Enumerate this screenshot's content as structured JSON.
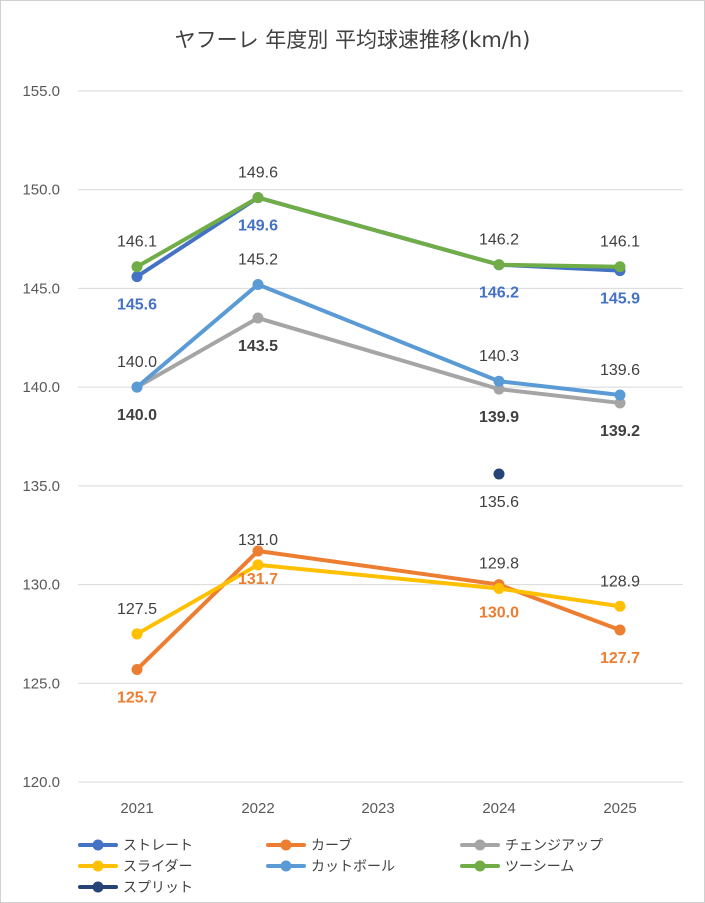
{
  "chart_data": {
    "type": "line",
    "title": "ヤフーレ 年度別 平均球速推移(km/h)",
    "categories": [
      "2021",
      "2022",
      "2023",
      "2024",
      "2025"
    ],
    "ylim": [
      120,
      155
    ],
    "yticks": [
      "120.0",
      "125.0",
      "130.0",
      "135.0",
      "140.0",
      "145.0",
      "150.0",
      "155.0"
    ],
    "grid": true,
    "legend_position": "bottom",
    "series": [
      {
        "name": "ストレート",
        "color": "#4472C4",
        "values": [
          145.6,
          149.6,
          null,
          146.2,
          145.9
        ],
        "labels": [
          "145.6",
          "149.6",
          null,
          "146.2",
          "145.9"
        ],
        "label_pos": "below",
        "label_color": "#4472C4",
        "label_bold": true
      },
      {
        "name": "カーブ",
        "color": "#ED7D31",
        "values": [
          125.7,
          131.7,
          null,
          130.0,
          127.7
        ],
        "labels": [
          "125.7",
          "131.7",
          null,
          "130.0",
          "127.7"
        ],
        "label_pos": "below",
        "label_color": "#ED7D31",
        "label_bold": true
      },
      {
        "name": "チェンジアップ",
        "color": "#A5A5A5",
        "values": [
          140.0,
          143.5,
          null,
          139.9,
          139.2
        ],
        "labels": [
          "140.0",
          "143.5",
          null,
          "139.9",
          "139.2"
        ],
        "label_pos": "below",
        "label_color": "#404040",
        "label_bold": true
      },
      {
        "name": "スライダー",
        "color": "#FFC000",
        "values": [
          127.5,
          131.0,
          null,
          129.8,
          128.9
        ],
        "labels": [
          "127.5",
          "131.0",
          null,
          "129.8",
          "128.9"
        ],
        "label_pos": "above",
        "label_color": "#404040",
        "label_bold": false
      },
      {
        "name": "カットボール",
        "color": "#5B9BD5",
        "values": [
          140.0,
          145.2,
          null,
          140.3,
          139.6
        ],
        "labels": [
          "140.0",
          "145.2",
          null,
          "140.3",
          "139.6"
        ],
        "label_pos": "above",
        "label_color": "#404040",
        "label_bold": false
      },
      {
        "name": "ツーシーム",
        "color": "#70AD47",
        "values": [
          146.1,
          149.6,
          null,
          146.2,
          146.1
        ],
        "labels": [
          "146.1",
          "149.6",
          null,
          "146.2",
          "146.1"
        ],
        "label_pos": "above",
        "label_color": "#404040",
        "label_bold": false
      },
      {
        "name": "スプリット",
        "color": "#264478",
        "values": [
          null,
          null,
          null,
          135.6,
          null
        ],
        "labels": [
          null,
          null,
          null,
          "135.6",
          null
        ],
        "label_pos": "below",
        "label_color": "#404040",
        "label_bold": false
      }
    ]
  }
}
